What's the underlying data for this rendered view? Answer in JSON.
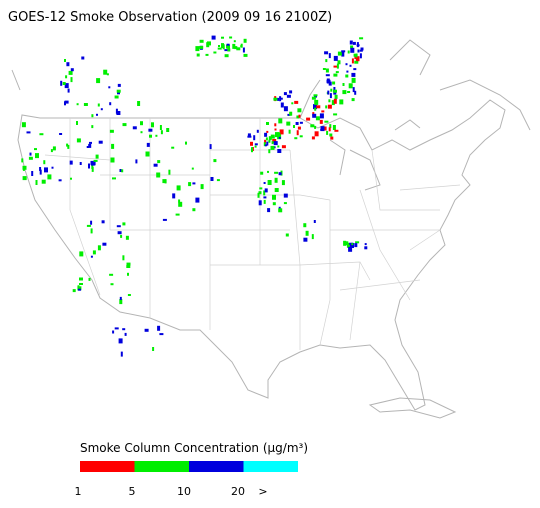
{
  "title": "GOES-12 Smoke Observation (2009 09 16  2100Z)",
  "legend": {
    "title": "Smoke Column Concentration (μg/m³)",
    "bins": [
      {
        "color": "#ff0000"
      },
      {
        "color": "#00ee00"
      },
      {
        "color": "#0000dd"
      },
      {
        "color": "#00ffff"
      }
    ],
    "ticks": [
      "1",
      "5",
      "10",
      "20",
      ">"
    ]
  }
}
